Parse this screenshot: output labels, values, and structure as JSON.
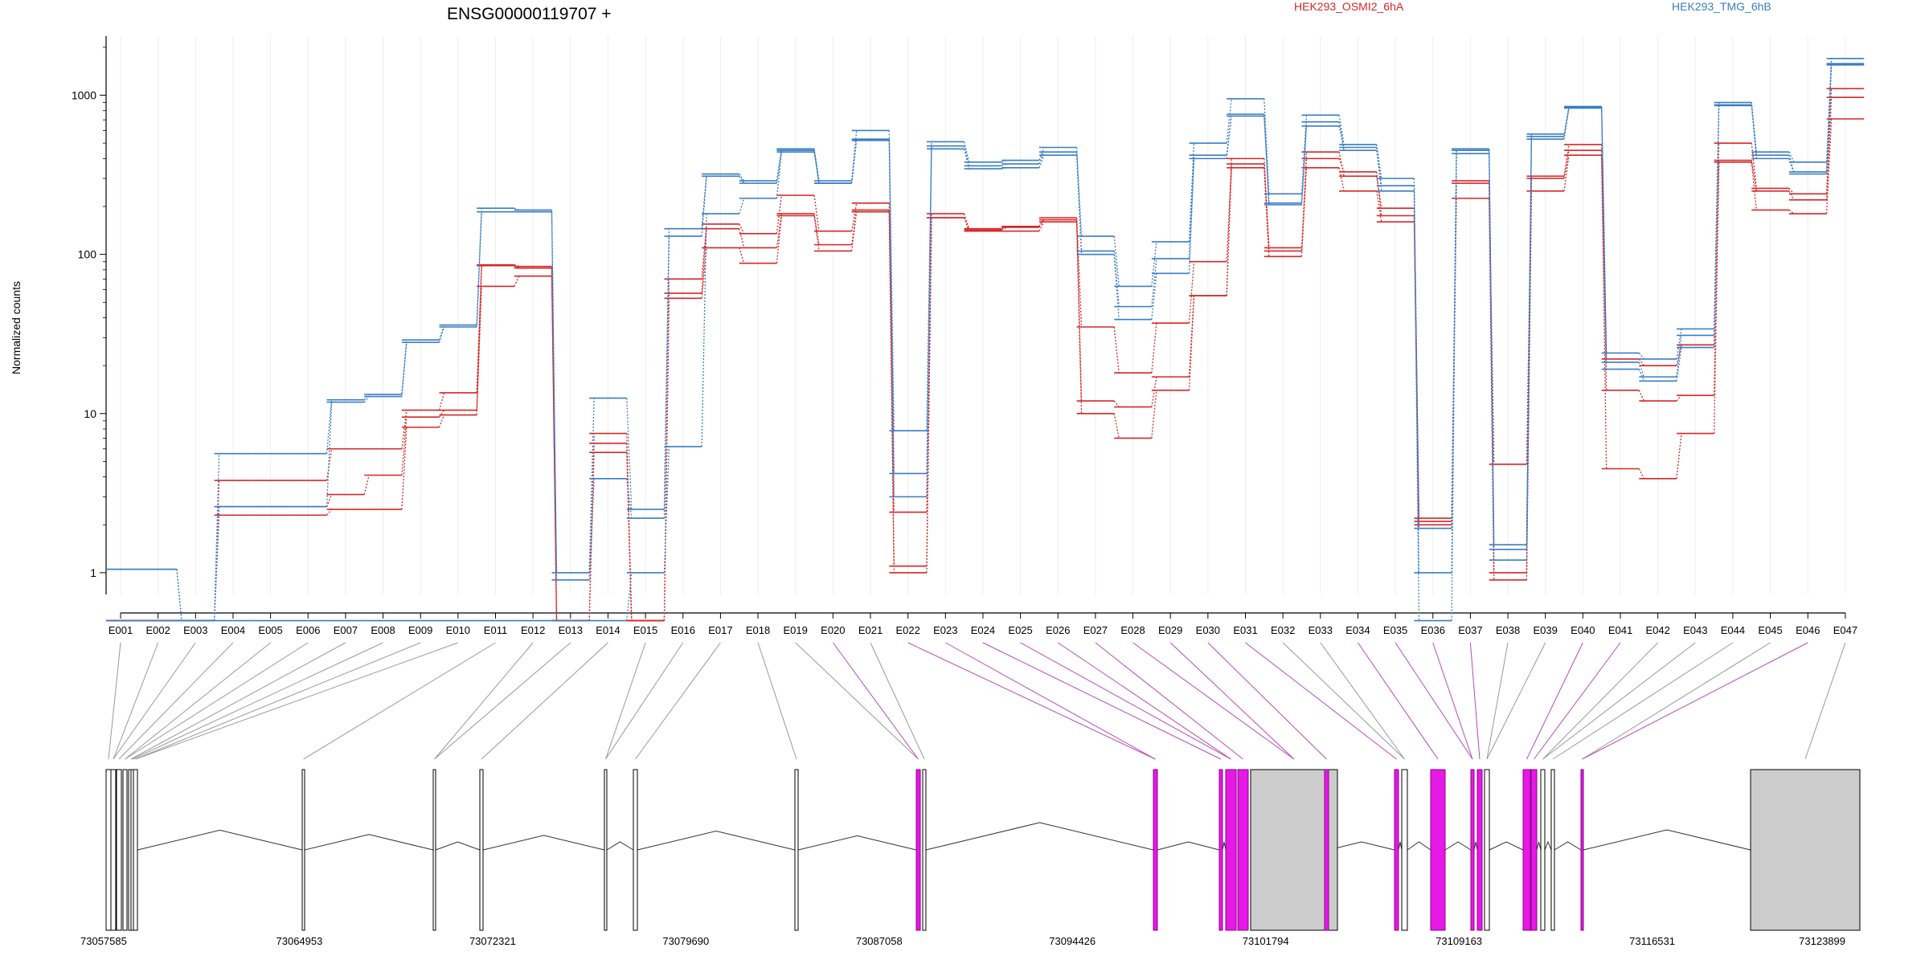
{
  "chart_data": {
    "type": "line",
    "title": "ENSG00000119707 +",
    "ylabel": "Normalized counts",
    "yscale": "log",
    "ylim": [
      0.5,
      2000
    ],
    "yticks": [
      1,
      10,
      100,
      1000
    ],
    "ytick_labels": [
      "1",
      "10",
      "100",
      "1000"
    ],
    "categories": [
      "E001",
      "E002",
      "E003",
      "E004",
      "E005",
      "E006",
      "E007",
      "E008",
      "E009",
      "E010",
      "E011",
      "E012",
      "E013",
      "E014",
      "E015",
      "E016",
      "E017",
      "E018",
      "E019",
      "E020",
      "E021",
      "E022",
      "E023",
      "E024",
      "E025",
      "E026",
      "E027",
      "E028",
      "E029",
      "E030",
      "E031",
      "E032",
      "E033",
      "E034",
      "E035",
      "E036",
      "E037",
      "E038",
      "E039",
      "E040",
      "E041",
      "E042",
      "E043",
      "E044",
      "E045",
      "E046",
      "E047"
    ],
    "legend": [
      {
        "label": "HEK293_OSMI2_6hA",
        "color": "#d62728"
      },
      {
        "label": "HEK293_TMG_6hB",
        "color": "#3a7dc4"
      }
    ],
    "series": [
      {
        "group": "HEK293_OSMI2_6hA",
        "color": "#d62728",
        "values": [
          0.5,
          0.5,
          0.5,
          3.8,
          3.8,
          3.8,
          6,
          6,
          10.5,
          13.5,
          86,
          84,
          0.5,
          7.5,
          0.5,
          70,
          155,
          135,
          235,
          140,
          210,
          1.1,
          180,
          145,
          150,
          170,
          35,
          18,
          37,
          90,
          370,
          105,
          440,
          310,
          195,
          2.2,
          290,
          4.8,
          310,
          490,
          22,
          20,
          27,
          500,
          260,
          240,
          1100
        ]
      },
      {
        "group": "HEK293_OSMI2_6hA",
        "color": "#d62728",
        "values": [
          0.5,
          0.5,
          0.5,
          2.6,
          2.6,
          2.6,
          3.1,
          4.1,
          9.5,
          10.5,
          85,
          82,
          0.5,
          6.5,
          0.5,
          57,
          145,
          110,
          180,
          115,
          190,
          2.4,
          170,
          142,
          148,
          165,
          12,
          11,
          17,
          55,
          400,
          110,
          400,
          330,
          175,
          2.1,
          280,
          1.0,
          300,
          450,
          14,
          12,
          13,
          390,
          250,
          220,
          970
        ]
      },
      {
        "group": "HEK293_OSMI2_6hA",
        "color": "#d62728",
        "values": [
          0.5,
          0.5,
          0.5,
          2.3,
          2.3,
          2.3,
          2.5,
          2.5,
          8.2,
          9.8,
          63,
          73,
          0.5,
          5.7,
          0.5,
          53,
          110,
          88,
          175,
          105,
          185,
          1.0,
          170,
          140,
          140,
          160,
          10,
          7,
          14,
          55,
          350,
          97,
          350,
          250,
          160,
          2.0,
          225,
          0.9,
          250,
          420,
          4.5,
          3.9,
          7.5,
          380,
          190,
          180,
          710
        ]
      },
      {
        "group": "HEK293_TMG_6hB",
        "color": "#3a7dc4",
        "values": [
          1.05,
          1.05,
          0.5,
          5.6,
          5.6,
          5.6,
          12.2,
          13.2,
          29,
          36,
          195,
          190,
          1.0,
          12.5,
          2.5,
          145,
          320,
          290,
          460,
          290,
          600,
          7.8,
          510,
          380,
          390,
          470,
          130,
          63,
          120,
          500,
          950,
          240,
          750,
          490,
          300,
          1.9,
          460,
          1.5,
          570,
          850,
          24,
          22,
          34,
          900,
          440,
          380,
          1700
        ]
      },
      {
        "group": "HEK293_TMG_6hB",
        "color": "#3a7dc4",
        "values": [
          1.05,
          1.05,
          0.5,
          2.6,
          2.6,
          2.6,
          11.8,
          12.8,
          28,
          35,
          185,
          185,
          0.9,
          3.9,
          2.2,
          130,
          310,
          280,
          450,
          280,
          530,
          4.2,
          480,
          360,
          370,
          440,
          105,
          47,
          94,
          420,
          760,
          210,
          680,
          470,
          270,
          1.0,
          450,
          1.4,
          550,
          840,
          21,
          17,
          31,
          870,
          420,
          330,
          1550
        ]
      },
      {
        "group": "HEK293_TMG_6hB",
        "color": "#3a7dc4",
        "values": [
          0.5,
          0.5,
          0.5,
          0.5,
          0.5,
          0.5,
          0.5,
          0.5,
          0.5,
          0.5,
          0.5,
          0.5,
          0.5,
          0.5,
          1.0,
          6.2,
          180,
          225,
          440,
          280,
          520,
          3.0,
          460,
          345,
          350,
          420,
          100,
          39,
          76,
          400,
          740,
          205,
          640,
          450,
          250,
          0.5,
          430,
          1.2,
          530,
          830,
          19,
          16,
          26,
          860,
          400,
          320,
          1580
        ]
      }
    ],
    "gene_model_coords": [
      "73057585",
      "73064953",
      "73072321",
      "73079690",
      "73087058",
      "73094426",
      "73101794",
      "73109163",
      "73116531",
      "73123899"
    ],
    "highlighted_exons": [
      "E020",
      "E022",
      "E023",
      "E024",
      "E025",
      "E026",
      "E027",
      "E028",
      "E029",
      "E030",
      "E031",
      "E034",
      "E035",
      "E036",
      "E037",
      "E040",
      "E041",
      "E046"
    ],
    "colors": {
      "highlight": "#e619e6",
      "highlight_stroke": "#8b008b",
      "exon_fill": "#d9d9d9",
      "line": "#000000",
      "connector": "#999999"
    }
  }
}
